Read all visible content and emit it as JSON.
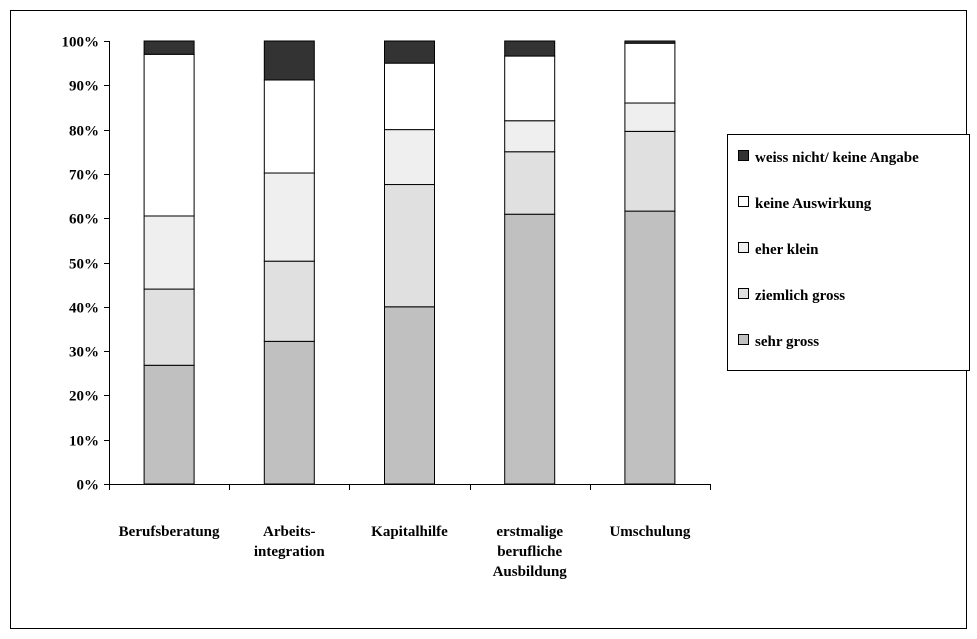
{
  "chart_data": {
    "type": "bar",
    "stacked": true,
    "percent": true,
    "title": "",
    "xlabel": "",
    "ylabel": "",
    "ylim": [
      0,
      100
    ],
    "yticks": [
      "0%",
      "10%",
      "20%",
      "30%",
      "40%",
      "50%",
      "60%",
      "70%",
      "80%",
      "90%",
      "100%"
    ],
    "categories": [
      [
        "Berufsberatung"
      ],
      [
        "Arbeits-",
        "integration"
      ],
      [
        "Kapitalhilfe"
      ],
      [
        "erstmalige",
        "berufliche",
        "Ausbildung"
      ],
      [
        "Umschulung"
      ]
    ],
    "series": [
      {
        "name": "sehr gross",
        "color": "#c0c0c0",
        "values": [
          26.8,
          32.2,
          40.0,
          60.9,
          61.6
        ]
      },
      {
        "name": "ziemlich gross",
        "color": "#e0e0e0",
        "values": [
          17.2,
          18.1,
          27.6,
          14.1,
          18.0
        ]
      },
      {
        "name": "eher klein",
        "color": "#efefef",
        "values": [
          16.5,
          19.9,
          12.4,
          7.0,
          6.4
        ]
      },
      {
        "name": "keine Auswirkung",
        "color": "#ffffff",
        "values": [
          36.5,
          21.0,
          15.0,
          14.6,
          13.5
        ]
      },
      {
        "name": "weiss nicht/ keine Angabe",
        "color": "#333333",
        "values": [
          3.0,
          8.8,
          5.0,
          3.4,
          0.5
        ]
      }
    ],
    "legend_position": "right",
    "grid": false
  }
}
